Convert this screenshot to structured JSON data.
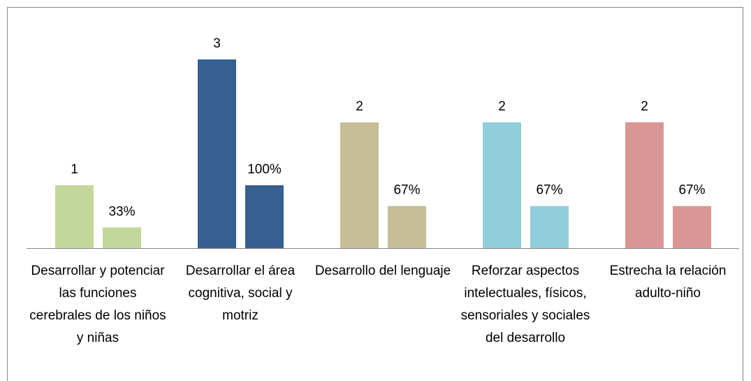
{
  "chart_data": {
    "type": "bar",
    "categories": [
      "Desarrollar y potenciar las funciones cerebrales de los niños y niñas",
      "Desarrollar el área cognitiva, social y motriz",
      "Desarrollo del lenguaje",
      "Reforzar aspectos intelectuales, físicos, sensoriales y sociales del desarrollo",
      "Estrecha la relación adulto-niño"
    ],
    "colors": [
      "#c4d79b",
      "#366092",
      "#c4bd97",
      "#92cddc",
      "#da9694"
    ],
    "series": [
      {
        "values": [
          1,
          3,
          2,
          2,
          2
        ]
      },
      {
        "values": [
          33,
          100,
          67,
          67,
          67
        ],
        "value_labels": [
          "33%",
          "100%",
          "67%",
          "67%",
          "67%"
        ],
        "axis": "y2"
      }
    ],
    "ylim": [
      0,
      3
    ],
    "y2lim": [
      0,
      300
    ]
  }
}
